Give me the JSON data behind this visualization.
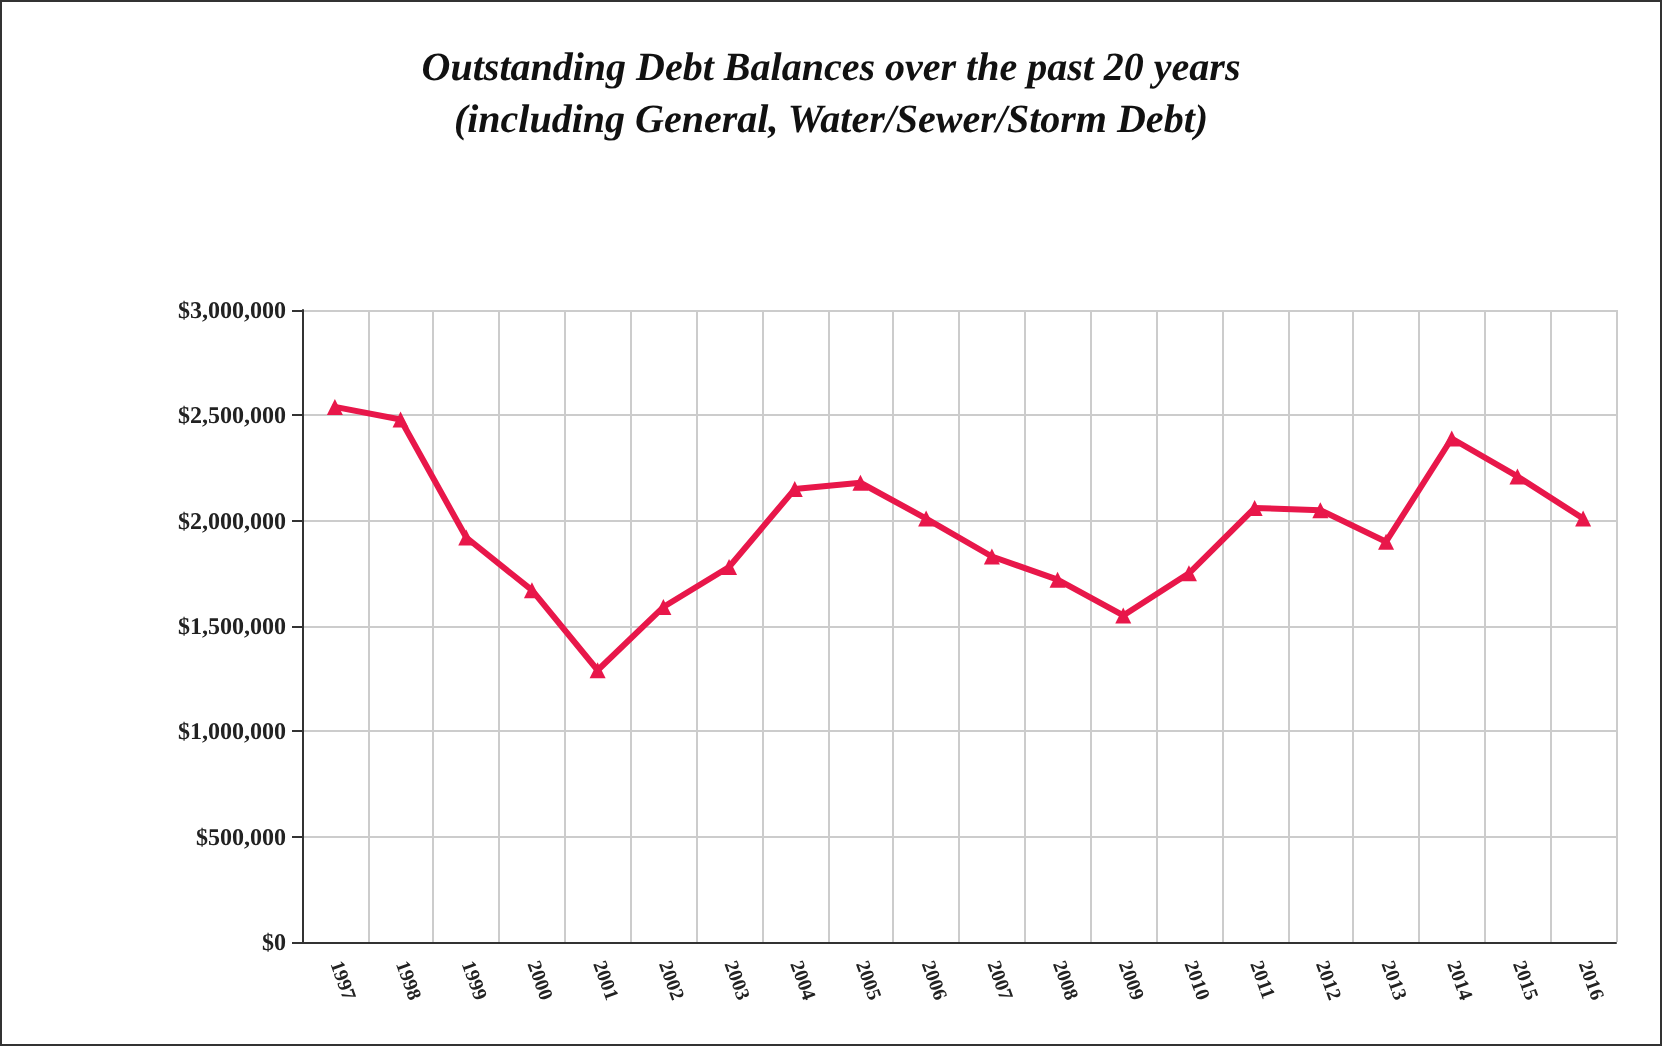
{
  "chart_data": {
    "type": "line",
    "title": "Outstanding Debt Balances over the past 20 years",
    "subtitle": "(including General, Water/Sewer/Storm Debt)",
    "categories": [
      "1997",
      "1998",
      "1999",
      "2000",
      "2001",
      "2002",
      "2003",
      "2004",
      "2005",
      "2006",
      "2007",
      "2008",
      "2009",
      "2010",
      "2011",
      "2012",
      "2013",
      "2014",
      "2015",
      "2016"
    ],
    "series": [
      {
        "color": "#e8174a",
        "values": [
          2540000,
          2480000,
          1920000,
          1670000,
          1290000,
          1590000,
          1780000,
          2150000,
          2180000,
          2010000,
          1830000,
          1720000,
          1550000,
          1750000,
          2060000,
          2050000,
          1900000,
          2390000,
          2210000,
          2010000
        ]
      }
    ],
    "ylim": [
      0,
      3000000
    ],
    "yticks": [
      {
        "value": 0,
        "label": "$0"
      },
      {
        "value": 500000,
        "label": "$500,000"
      },
      {
        "value": 1000000,
        "label": "$1,000,000"
      },
      {
        "value": 1500000,
        "label": "$1,500,000"
      },
      {
        "value": 2000000,
        "label": "$2,000,000"
      },
      {
        "value": 2500000,
        "label": "$2,500,000"
      },
      {
        "value": 3000000,
        "label": "$3,000,000"
      }
    ],
    "grid": true,
    "marker": "triangle",
    "line_style": "solid"
  }
}
